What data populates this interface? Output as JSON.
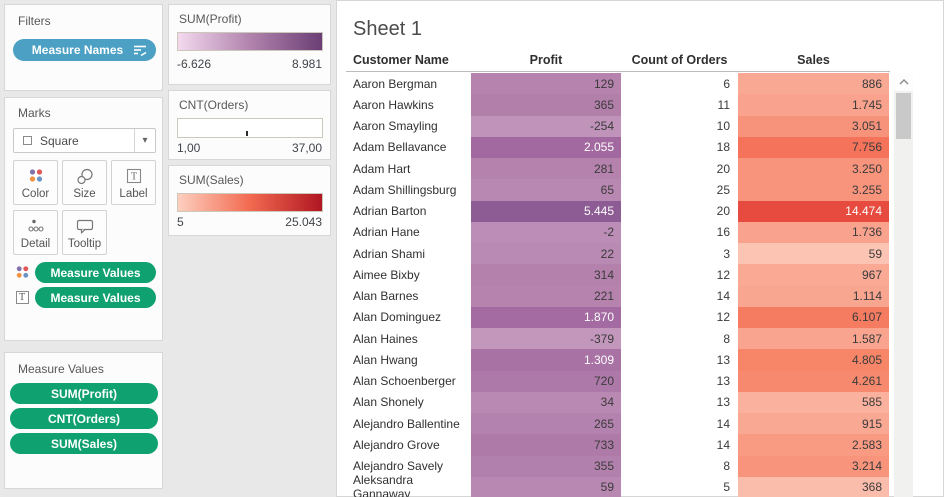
{
  "filters_card": {
    "title": "Filters",
    "pill": "Measure Names",
    "pill_color": "#4ba0c3"
  },
  "marks_card": {
    "title": "Marks",
    "mark_type": "Square",
    "buttons": {
      "color": "Color",
      "size": "Size",
      "label": "Label",
      "detail": "Detail",
      "tooltip": "Tooltip"
    },
    "pills": [
      {
        "label": "Measure Values",
        "icon": "color-dots"
      },
      {
        "label": "Measure Values",
        "icon": "text"
      }
    ],
    "pill_color": "#10a171"
  },
  "measure_values_card": {
    "title": "Measure Values",
    "pills": [
      "SUM(Profit)",
      "CNT(Orders)",
      "SUM(Sales)"
    ]
  },
  "legends": [
    {
      "title": "SUM(Profit)",
      "type": "color-gradient",
      "min_label": "-6.626",
      "max_label": "8.981",
      "stops": [
        "#f3d9ee",
        "#b183ad",
        "#6b3e75"
      ]
    },
    {
      "title": "CNT(Orders)",
      "type": "size",
      "min_label": "1,00",
      "max_label": "37,00"
    },
    {
      "title": "SUM(Sales)",
      "type": "color-gradient",
      "min_label": "5",
      "max_label": "25.043",
      "stops": [
        "#fdcfbf",
        "#f26a50",
        "#b01622"
      ]
    }
  ],
  "sheet": {
    "title": "Sheet 1"
  },
  "chart_data": {
    "type": "table",
    "title": "Sheet 1",
    "columns": [
      "Customer Name",
      "Profit",
      "Count of Orders",
      "Sales"
    ],
    "color_encoding": {
      "profit": {
        "min": -6626,
        "max": 8981,
        "palette": "purple-sequential"
      },
      "orders_size": {
        "min": 1,
        "max": 37
      },
      "sales": {
        "min": 5,
        "max": 25043,
        "palette": "red-sequential"
      }
    },
    "rows": [
      {
        "customer": "Aaron Bergman",
        "profit": 129,
        "orders": 6,
        "sales": 886,
        "profit_label": "129",
        "orders_label": "6",
        "sales_label": "886",
        "profit_color": "#b683af",
        "sales_color": "#f9a893",
        "profit_white": false,
        "sales_white": false
      },
      {
        "customer": "Aaron Hawkins",
        "profit": 365,
        "orders": 11,
        "sales": 1745,
        "profit_label": "365",
        "orders_label": "11",
        "sales_label": "1.745",
        "profit_color": "#b27fab",
        "sales_color": "#f9a28d",
        "profit_white": false,
        "sales_white": false
      },
      {
        "customer": "Aaron Smayling",
        "profit": -254,
        "orders": 10,
        "sales": 3051,
        "profit_label": "-254",
        "orders_label": "10",
        "sales_label": "3.051",
        "profit_color": "#c093ba",
        "sales_color": "#f8937b",
        "profit_white": false,
        "sales_white": false
      },
      {
        "customer": "Adam Bellavance",
        "profit": 2055,
        "orders": 18,
        "sales": 7756,
        "profit_label": "2.055",
        "orders_label": "18",
        "sales_label": "7.756",
        "profit_color": "#a269a0",
        "sales_color": "#f4735a",
        "profit_white": true,
        "sales_white": false
      },
      {
        "customer": "Adam Hart",
        "profit": 281,
        "orders": 20,
        "sales": 3250,
        "profit_label": "281",
        "orders_label": "20",
        "sales_label": "3.250",
        "profit_color": "#b482ad",
        "sales_color": "#f8947c",
        "profit_white": false,
        "sales_white": false
      },
      {
        "customer": "Adam Shillingsburg",
        "profit": 65,
        "orders": 25,
        "sales": 3255,
        "profit_label": "65",
        "orders_label": "25",
        "sales_label": "3.255",
        "profit_color": "#b888b2",
        "sales_color": "#f8947c",
        "profit_white": false,
        "sales_white": false
      },
      {
        "customer": "Adrian Barton",
        "profit": 5445,
        "orders": 20,
        "sales": 14474,
        "profit_label": "5.445",
        "orders_label": "20",
        "sales_label": "14.474",
        "profit_color": "#8e5c95",
        "sales_color": "#e74a3e",
        "profit_white": true,
        "sales_white": true
      },
      {
        "customer": "Adrian Hane",
        "profit": -2,
        "orders": 16,
        "sales": 1736,
        "profit_label": "-2",
        "orders_label": "16",
        "sales_label": "1.736",
        "profit_color": "#bc8db7",
        "sales_color": "#f9a28d",
        "profit_white": false,
        "sales_white": false
      },
      {
        "customer": "Adrian Shami",
        "profit": 22,
        "orders": 3,
        "sales": 59,
        "profit_label": "22",
        "orders_label": "3",
        "sales_label": "59",
        "profit_color": "#b98ab3",
        "sales_color": "#fbc4b3",
        "profit_white": false,
        "sales_white": false
      },
      {
        "customer": "Aimee Bixby",
        "profit": 314,
        "orders": 12,
        "sales": 967,
        "profit_label": "314",
        "orders_label": "12",
        "sales_label": "967",
        "profit_color": "#b381ac",
        "sales_color": "#f9a994",
        "profit_white": false,
        "sales_white": false
      },
      {
        "customer": "Alan Barnes",
        "profit": 221,
        "orders": 14,
        "sales": 1114,
        "profit_label": "221",
        "orders_label": "14",
        "sales_label": "1.114",
        "profit_color": "#b583ae",
        "sales_color": "#f9a691",
        "profit_white": false,
        "sales_white": false
      },
      {
        "customer": "Alan Dominguez",
        "profit": 1870,
        "orders": 12,
        "sales": 6107,
        "profit_label": "1.870",
        "orders_label": "12",
        "sales_label": "6.107",
        "profit_color": "#a46ba2",
        "sales_color": "#f57b61",
        "profit_white": true,
        "sales_white": false
      },
      {
        "customer": "Alan Haines",
        "profit": -379,
        "orders": 8,
        "sales": 1587,
        "profit_label": "-379",
        "orders_label": "8",
        "sales_label": "1.587",
        "profit_color": "#c396bc",
        "sales_color": "#f9a48f",
        "profit_white": false,
        "sales_white": false
      },
      {
        "customer": "Alan Hwang",
        "profit": 1309,
        "orders": 13,
        "sales": 4805,
        "profit_label": "1.309",
        "orders_label": "13",
        "sales_label": "4.805",
        "profit_color": "#a972a5",
        "sales_color": "#f78669",
        "profit_white": true,
        "sales_white": false
      },
      {
        "customer": "Alan Schoenberger",
        "profit": 720,
        "orders": 13,
        "sales": 4261,
        "profit_label": "720",
        "orders_label": "13",
        "sales_label": "4.261",
        "profit_color": "#ad79a8",
        "sales_color": "#f78a6e",
        "profit_white": false,
        "sales_white": false
      },
      {
        "customer": "Alan Shonely",
        "profit": 34,
        "orders": 13,
        "sales": 585,
        "profit_label": "34",
        "orders_label": "13",
        "sales_label": "585",
        "profit_color": "#b989b3",
        "sales_color": "#fab29e",
        "profit_white": false,
        "sales_white": false
      },
      {
        "customer": "Alejandro Ballentine",
        "profit": 265,
        "orders": 14,
        "sales": 915,
        "profit_label": "265",
        "orders_label": "14",
        "sales_label": "915",
        "profit_color": "#b482ae",
        "sales_color": "#f9a893",
        "profit_white": false,
        "sales_white": false
      },
      {
        "customer": "Alejandro Grove",
        "profit": 733,
        "orders": 14,
        "sales": 2583,
        "profit_label": "733",
        "orders_label": "14",
        "sales_label": "2.583",
        "profit_color": "#ae7aa8",
        "sales_color": "#f99a83",
        "profit_white": false,
        "sales_white": false
      },
      {
        "customer": "Alejandro Savely",
        "profit": 355,
        "orders": 8,
        "sales": 3214,
        "profit_label": "355",
        "orders_label": "8",
        "sales_label": "3.214",
        "profit_color": "#b280ac",
        "sales_color": "#f8947c",
        "profit_white": false,
        "sales_white": false
      },
      {
        "customer": "Aleksandra Gannaway",
        "profit": 59,
        "orders": 5,
        "sales": 368,
        "profit_label": "59",
        "orders_label": "5",
        "sales_label": "368",
        "profit_color": "#b888b2",
        "sales_color": "#fabcab",
        "profit_white": false,
        "sales_white": false
      }
    ]
  }
}
